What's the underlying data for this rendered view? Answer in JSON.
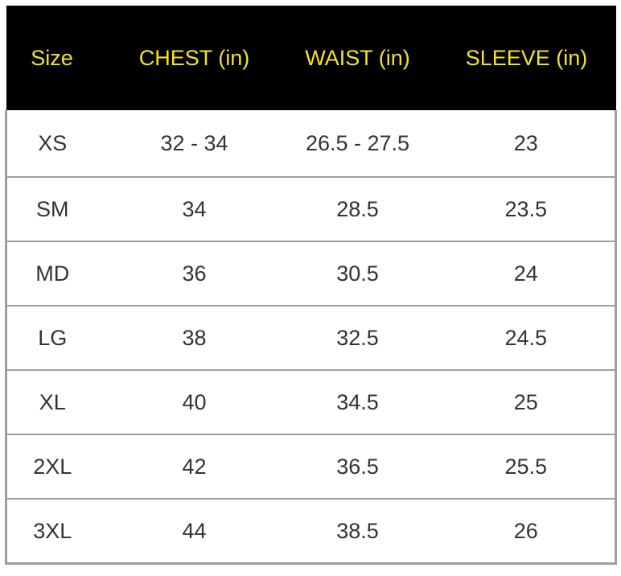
{
  "colors": {
    "header_bg": "#000000",
    "header_text": "#f2e32a",
    "cell_text": "#333333",
    "border": "#9e9e9e"
  },
  "table": {
    "headers": [
      "Size",
      "CHEST (in)",
      "WAIST (in)",
      "SLEEVE (in)"
    ],
    "rows": [
      [
        "XS",
        "32 - 34",
        "26.5 - 27.5",
        "23"
      ],
      [
        "SM",
        "34",
        "28.5",
        "23.5"
      ],
      [
        "MD",
        "36",
        "30.5",
        "24"
      ],
      [
        "LG",
        "38",
        "32.5",
        "24.5"
      ],
      [
        "XL",
        "40",
        "34.5",
        "25"
      ],
      [
        "2XL",
        "42",
        "36.5",
        "25.5"
      ],
      [
        "3XL",
        "44",
        "38.5",
        "26"
      ]
    ]
  }
}
